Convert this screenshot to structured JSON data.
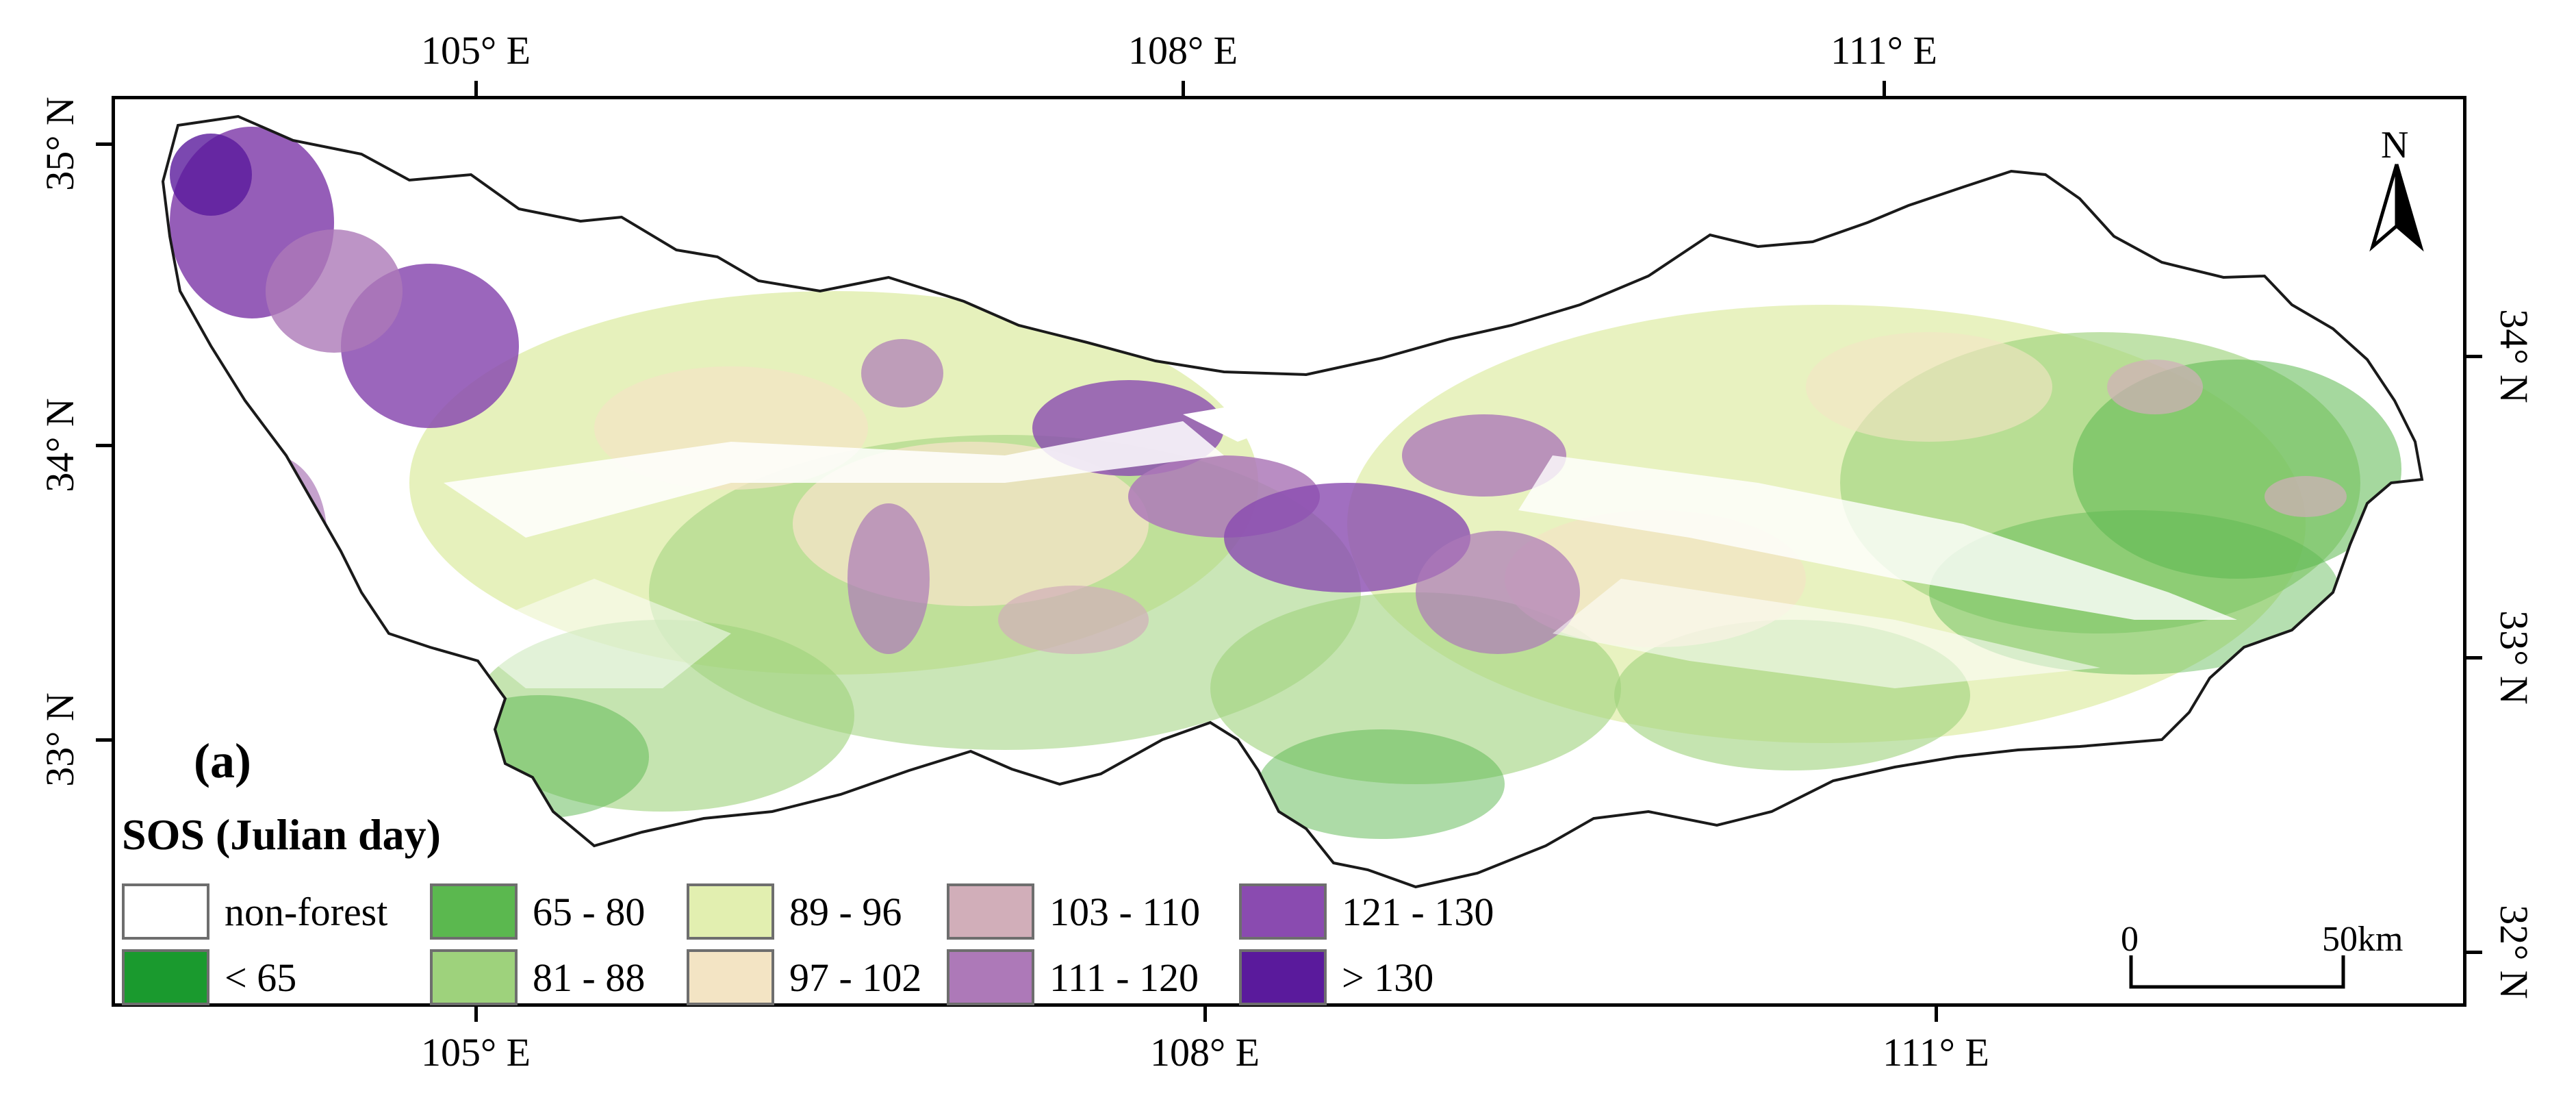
{
  "map": {
    "panel_label": "(a)",
    "legend_title": "SOS (Julian day)",
    "axis_labels": {
      "top": [
        "105° E",
        "108° E",
        "111° E"
      ],
      "bottom": [
        "105° E",
        "108° E",
        "111° E"
      ],
      "left": [
        "35° N",
        "34° N",
        "33° N"
      ],
      "right": [
        "34° N",
        "33° N",
        "32° N"
      ]
    },
    "legend_items": [
      {
        "label": "non-forest",
        "color": "#ffffff"
      },
      {
        "label": "< 65",
        "color": "#1a9a2e"
      },
      {
        "label": "65 - 80",
        "color": "#5bb84f"
      },
      {
        "label": "81 - 88",
        "color": "#9ed27c"
      },
      {
        "label": "89 - 96",
        "color": "#e2efb0"
      },
      {
        "label": "97 - 102",
        "color": "#f3e4c4"
      },
      {
        "label": "103 - 110",
        "color": "#d1aeb9"
      },
      {
        "label": "111 - 120",
        "color": "#ad79b8"
      },
      {
        "label": "121 - 130",
        "color": "#8a4bb0"
      },
      {
        "label": "> 130",
        "color": "#5a1a9c"
      }
    ],
    "scale": {
      "start": "0",
      "end": "50km"
    },
    "north_label": "N",
    "boundary_color": "#1a1a1a"
  }
}
